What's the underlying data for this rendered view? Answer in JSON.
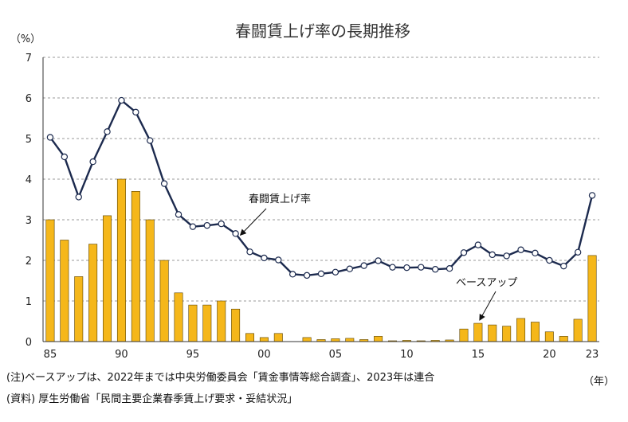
{
  "chart_data": {
    "type": "bar+line",
    "title": "春闘賃上げ率の長期推移",
    "ylabel": "（%）",
    "xlabel": "（年）",
    "ylim": [
      0,
      7
    ],
    "yticks": [
      "0",
      "1",
      "2",
      "3",
      "4",
      "5",
      "6",
      "7"
    ],
    "grid": true,
    "x": [
      1985,
      1986,
      1987,
      1988,
      1989,
      1990,
      1991,
      1992,
      1993,
      1994,
      1995,
      1996,
      1997,
      1998,
      1999,
      2000,
      2001,
      2002,
      2003,
      2004,
      2005,
      2006,
      2007,
      2008,
      2009,
      2010,
      2011,
      2012,
      2013,
      2014,
      2015,
      2016,
      2017,
      2018,
      2019,
      2020,
      2021,
      2022,
      2023
    ],
    "xtick_labels": [
      {
        "year": 1985,
        "label": "85"
      },
      {
        "year": 1990,
        "label": "90"
      },
      {
        "year": 1995,
        "label": "95"
      },
      {
        "year": 2000,
        "label": "00"
      },
      {
        "year": 2005,
        "label": "05"
      },
      {
        "year": 2010,
        "label": "10"
      },
      {
        "year": 2015,
        "label": "15"
      },
      {
        "year": 2020,
        "label": "20"
      },
      {
        "year": 2023,
        "label": "23"
      }
    ],
    "series": [
      {
        "name": "春闘賃上げ率",
        "kind": "line",
        "color": "#1c2a4e",
        "values": [
          5.03,
          4.55,
          3.56,
          4.43,
          5.17,
          5.94,
          5.65,
          4.95,
          3.89,
          3.13,
          2.83,
          2.86,
          2.9,
          2.66,
          2.21,
          2.06,
          2.01,
          1.66,
          1.63,
          1.67,
          1.71,
          1.79,
          1.87,
          1.99,
          1.83,
          1.82,
          1.83,
          1.78,
          1.8,
          2.19,
          2.38,
          2.14,
          2.11,
          2.26,
          2.18,
          2.0,
          1.86,
          2.2,
          3.6
        ]
      },
      {
        "name": "ベースアップ",
        "kind": "bar",
        "color": "#f5b71a",
        "values": [
          3.0,
          2.5,
          1.6,
          2.4,
          3.1,
          4.0,
          3.7,
          3.0,
          2.0,
          1.2,
          0.9,
          0.9,
          1.0,
          0.8,
          0.2,
          0.1,
          0.2,
          0.0,
          0.1,
          0.05,
          0.07,
          0.08,
          0.05,
          0.13,
          0.02,
          0.03,
          0.02,
          0.03,
          0.04,
          0.31,
          0.45,
          0.41,
          0.38,
          0.57,
          0.48,
          0.24,
          0.13,
          0.55,
          2.12
        ]
      }
    ]
  },
  "notes": {
    "note1": "(注)ベースアップは、2022年までは中央労働委員会「賃金事情等総合調査」、2023年は連合",
    "note2": "(資料) 厚生労働省「民間主要企業春季賃上げ要求・妥結状況」"
  }
}
